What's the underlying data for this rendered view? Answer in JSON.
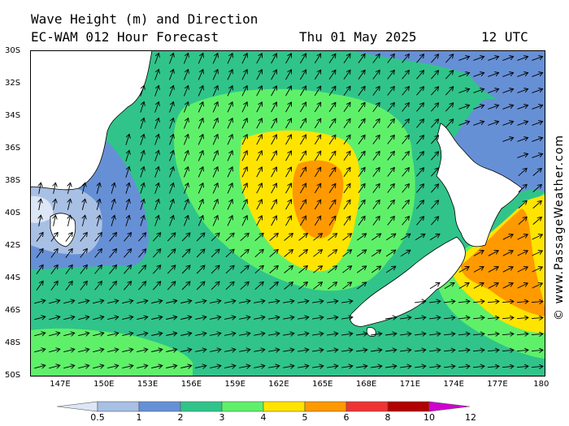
{
  "header": {
    "title": "Wave Height (m) and Direction",
    "model": "EC-WAM 012 Hour Forecast",
    "datetime": "Thu 01 May 2025",
    "time": "12 UTC"
  },
  "credit": "© www.PassageWeather.com",
  "latitude_labels": [
    "30S",
    "32S",
    "34S",
    "36S",
    "38S",
    "40S",
    "42S",
    "44S",
    "46S",
    "48S",
    "50S"
  ],
  "longitude_labels": [
    "147E",
    "150E",
    "153E",
    "156E",
    "159E",
    "162E",
    "165E",
    "168E",
    "171E",
    "174E",
    "177E",
    "180"
  ],
  "legend": {
    "ticks": [
      "0.5",
      "1",
      "2",
      "3",
      "4",
      "5",
      "6",
      "8",
      "10",
      "12"
    ],
    "colors": [
      "#dce6f5",
      "#a8c0e4",
      "#6690d6",
      "#30c48a",
      "#5ff06a",
      "#ffe400",
      "#ff9900",
      "#ee3333",
      "#b30000",
      "#d000d0"
    ]
  },
  "map_colors": {
    "very_light_blue": "#dce6f5",
    "light_blue": "#a8c0e4",
    "blue": "#6690d6",
    "teal": "#30c48a",
    "green": "#5ff06a",
    "yellow": "#ffe400",
    "orange": "#ff9900",
    "land": "#ffffff"
  },
  "region": {
    "lon_range": [
      145,
      180
    ],
    "lat_range": [
      -50,
      -30
    ],
    "peak_areas": [
      {
        "area": "Tasman Sea centre",
        "max_wave_height_m": "6-8",
        "center_lon": 163.5,
        "center_lat": -39
      },
      {
        "area": "East of New Zealand",
        "max_wave_height_m": "6-8",
        "center_lon": 177,
        "center_lat": -43.5
      }
    ]
  }
}
